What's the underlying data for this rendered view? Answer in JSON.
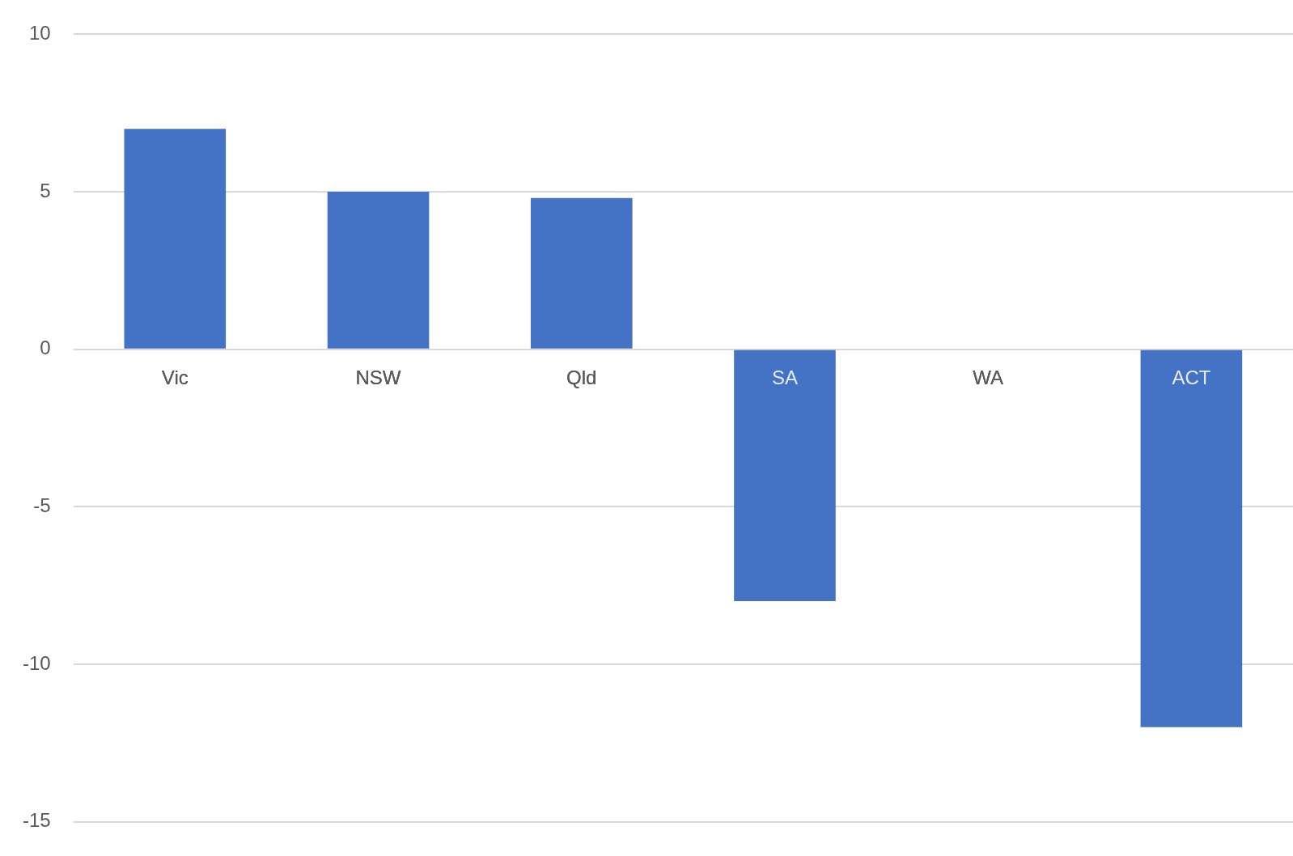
{
  "chart_data": {
    "type": "bar",
    "categories": [
      "Vic",
      "NSW",
      "Qld",
      "SA",
      "WA",
      "ACT"
    ],
    "values": [
      7,
      5,
      4.8,
      -8,
      0,
      -12
    ],
    "color": "#4472c4",
    "ylim": [
      -15,
      10
    ],
    "yticks": [
      -15,
      -10,
      -5,
      0,
      5,
      10
    ],
    "grid": "y"
  }
}
